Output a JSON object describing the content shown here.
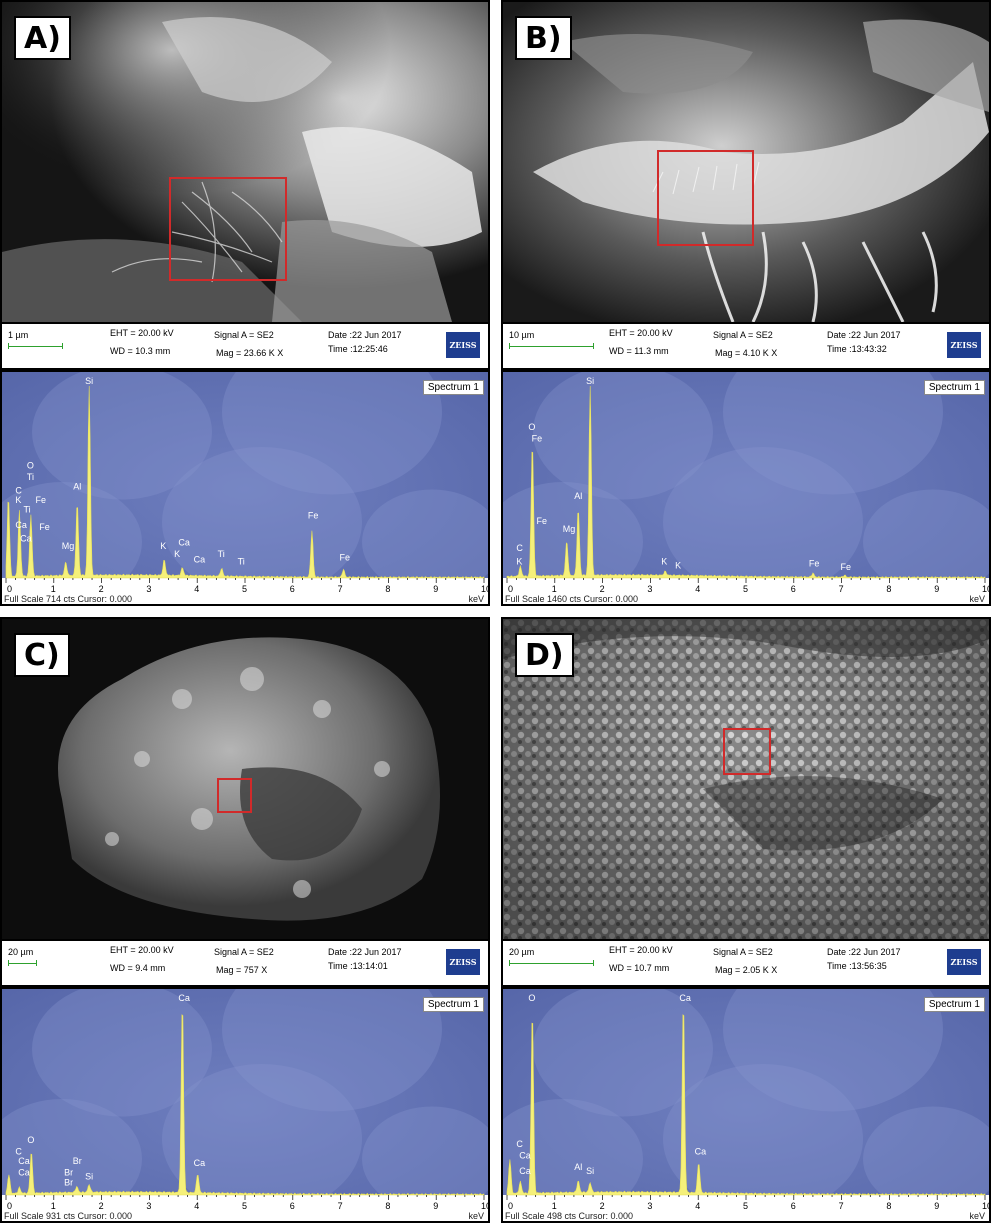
{
  "panels": {
    "A": {
      "label": "A)",
      "scale": "1 µm",
      "eht": "EHT = 20.00 kV",
      "wd": "WD = 10.3 mm",
      "signal": "Signal A = SE2",
      "mag": "Mag =  23.66 K X",
      "date": "Date :22 Jun 2017",
      "time": "Time :12:25:46",
      "brand": "ZEISS",
      "spectrum_title": "Spectrum 1",
      "full_scale": "Full Scale 714 cts Cursor: 0.000",
      "unit": "keV"
    },
    "B": {
      "label": "B)",
      "scale": "10 µm",
      "eht": "EHT = 20.00 kV",
      "wd": "WD = 11.3 mm",
      "signal": "Signal A = SE2",
      "mag": "Mag =  4.10 K X",
      "date": "Date :22 Jun 2017",
      "time": "Time :13:43:32",
      "brand": "ZEISS",
      "spectrum_title": "Spectrum 1",
      "full_scale": "Full Scale 1460 cts Cursor: 0.000",
      "unit": "keV"
    },
    "C": {
      "label": "C)",
      "scale": "20 µm",
      "eht": "EHT = 20.00 kV",
      "wd": "WD = 9.4 mm",
      "signal": "Signal A = SE2",
      "mag": "Mag =  757 X",
      "date": "Date :22 Jun 2017",
      "time": "Time :13:14:01",
      "brand": "ZEISS",
      "spectrum_title": "Spectrum 1",
      "full_scale": "Full Scale 931 cts Cursor: 0.000",
      "unit": "keV"
    },
    "D": {
      "label": "D)",
      "scale": "20 µm",
      "eht": "EHT = 20.00 kV",
      "wd": "WD = 10.7 mm",
      "signal": "Signal A = SE2",
      "mag": "Mag =  2.05 K X",
      "date": "Date :22 Jun 2017",
      "time": "Time :13:56:35",
      "brand": "ZEISS",
      "spectrum_title": "Spectrum 1",
      "full_scale": "Full Scale 498 cts Cursor: 0.000",
      "unit": "keV"
    }
  },
  "spectra": {
    "axis_ticks": [
      "0",
      "1",
      "2",
      "3",
      "4",
      "5",
      "6",
      "7",
      "8",
      "9",
      "10"
    ],
    "A": {
      "peaks": [
        {
          "kev": 0.05,
          "h": 0.42
        },
        {
          "kev": 0.28,
          "h": 0.34
        },
        {
          "kev": 0.52,
          "h": 0.32
        },
        {
          "kev": 1.25,
          "h": 0.07
        },
        {
          "kev": 1.49,
          "h": 0.38
        },
        {
          "kev": 1.74,
          "h": 1.0
        },
        {
          "kev": 3.31,
          "h": 0.08
        },
        {
          "kev": 3.69,
          "h": 0.04
        },
        {
          "kev": 4.51,
          "h": 0.04
        },
        {
          "kev": 6.4,
          "h": 0.24
        },
        {
          "kev": 7.06,
          "h": 0.04
        }
      ],
      "labels": [
        {
          "t": "Si",
          "kev": 1.74,
          "lvl": 1.0
        },
        {
          "t": "O",
          "kev": 0.52,
          "lvl": 0.56
        },
        {
          "t": "Ti",
          "kev": 0.52,
          "lvl": 0.5
        },
        {
          "t": "C",
          "kev": 0.28,
          "lvl": 0.43
        },
        {
          "t": "K",
          "kev": 0.28,
          "lvl": 0.38
        },
        {
          "t": "Fe",
          "kev": 0.7,
          "lvl": 0.38
        },
        {
          "t": "Ti",
          "kev": 0.45,
          "lvl": 0.33
        },
        {
          "t": "Ca",
          "kev": 0.28,
          "lvl": 0.25
        },
        {
          "t": "Fe",
          "kev": 0.78,
          "lvl": 0.24
        },
        {
          "t": "Ca",
          "kev": 0.38,
          "lvl": 0.18
        },
        {
          "t": "Al",
          "kev": 1.49,
          "lvl": 0.45
        },
        {
          "t": "Mg",
          "kev": 1.25,
          "lvl": 0.14
        },
        {
          "t": "K",
          "kev": 3.31,
          "lvl": 0.14
        },
        {
          "t": "Ca",
          "kev": 3.69,
          "lvl": 0.16
        },
        {
          "t": "K",
          "kev": 3.6,
          "lvl": 0.1
        },
        {
          "t": "Ca",
          "kev": 4.01,
          "lvl": 0.07
        },
        {
          "t": "Ti",
          "kev": 4.51,
          "lvl": 0.1
        },
        {
          "t": "Ti",
          "kev": 4.93,
          "lvl": 0.06
        },
        {
          "t": "Fe",
          "kev": 6.4,
          "lvl": 0.3
        },
        {
          "t": "Fe",
          "kev": 7.06,
          "lvl": 0.08
        }
      ]
    },
    "B": {
      "peaks": [
        {
          "kev": 0.28,
          "h": 0.05
        },
        {
          "kev": 0.53,
          "h": 0.7
        },
        {
          "kev": 1.25,
          "h": 0.18
        },
        {
          "kev": 1.49,
          "h": 0.35
        },
        {
          "kev": 1.74,
          "h": 1.0
        },
        {
          "kev": 3.31,
          "h": 0.02
        },
        {
          "kev": 6.4,
          "h": 0.02
        },
        {
          "kev": 7.06,
          "h": 0.01
        }
      ],
      "labels": [
        {
          "t": "Si",
          "kev": 1.74,
          "lvl": 1.0
        },
        {
          "t": "O",
          "kev": 0.53,
          "lvl": 0.76
        },
        {
          "t": "Fe",
          "kev": 0.6,
          "lvl": 0.7
        },
        {
          "t": "Fe",
          "kev": 0.7,
          "lvl": 0.27
        },
        {
          "t": "Al",
          "kev": 1.49,
          "lvl": 0.4
        },
        {
          "t": "Mg",
          "kev": 1.25,
          "lvl": 0.23
        },
        {
          "t": "C",
          "kev": 0.28,
          "lvl": 0.13
        },
        {
          "t": "K",
          "kev": 0.28,
          "lvl": 0.06
        },
        {
          "t": "K",
          "kev": 3.31,
          "lvl": 0.06
        },
        {
          "t": "K",
          "kev": 3.6,
          "lvl": 0.04
        },
        {
          "t": "Fe",
          "kev": 6.4,
          "lvl": 0.05
        },
        {
          "t": "Fe",
          "kev": 7.06,
          "lvl": 0.03
        }
      ]
    },
    "C": {
      "peaks": [
        {
          "kev": 0.06,
          "h": 0.1
        },
        {
          "kev": 0.28,
          "h": 0.03
        },
        {
          "kev": 0.53,
          "h": 0.22
        },
        {
          "kev": 1.48,
          "h": 0.03
        },
        {
          "kev": 1.74,
          "h": 0.04
        },
        {
          "kev": 3.69,
          "h": 1.0
        },
        {
          "kev": 4.01,
          "h": 0.1
        }
      ],
      "labels": [
        {
          "t": "Ca",
          "kev": 3.69,
          "lvl": 1.0
        },
        {
          "t": "O",
          "kev": 0.53,
          "lvl": 0.26
        },
        {
          "t": "C",
          "kev": 0.28,
          "lvl": 0.2
        },
        {
          "t": "Ca",
          "kev": 0.34,
          "lvl": 0.15
        },
        {
          "t": "Ca",
          "kev": 0.34,
          "lvl": 0.09
        },
        {
          "t": "Br",
          "kev": 1.48,
          "lvl": 0.15
        },
        {
          "t": "Br",
          "kev": 1.3,
          "lvl": 0.09
        },
        {
          "t": "Br",
          "kev": 1.3,
          "lvl": 0.04
        },
        {
          "t": "Si",
          "kev": 1.74,
          "lvl": 0.07
        },
        {
          "t": "Ca",
          "kev": 4.01,
          "lvl": 0.14
        }
      ]
    },
    "D": {
      "peaks": [
        {
          "kev": 0.06,
          "h": 0.18
        },
        {
          "kev": 0.28,
          "h": 0.06
        },
        {
          "kev": 0.53,
          "h": 0.96
        },
        {
          "kev": 1.49,
          "h": 0.06
        },
        {
          "kev": 1.74,
          "h": 0.05
        },
        {
          "kev": 3.69,
          "h": 1.0
        },
        {
          "kev": 4.01,
          "h": 0.16
        }
      ],
      "labels": [
        {
          "t": "Ca",
          "kev": 3.69,
          "lvl": 1.0
        },
        {
          "t": "O",
          "kev": 0.53,
          "lvl": 1.0
        },
        {
          "t": "C",
          "kev": 0.28,
          "lvl": 0.24
        },
        {
          "t": "Ca",
          "kev": 0.34,
          "lvl": 0.18
        },
        {
          "t": "Ca",
          "kev": 0.34,
          "lvl": 0.1
        },
        {
          "t": "Al",
          "kev": 1.49,
          "lvl": 0.12
        },
        {
          "t": "Si",
          "kev": 1.74,
          "lvl": 0.1
        },
        {
          "t": "Ca",
          "kev": 4.01,
          "lvl": 0.2
        }
      ]
    }
  },
  "colors": {
    "spectrum_fill": "#f5f07a",
    "spectrum_bg": "#5363a6",
    "roi_box": "#d12a2a",
    "scalebar": "#2ea12e",
    "zeiss": "#1e3d8f"
  }
}
